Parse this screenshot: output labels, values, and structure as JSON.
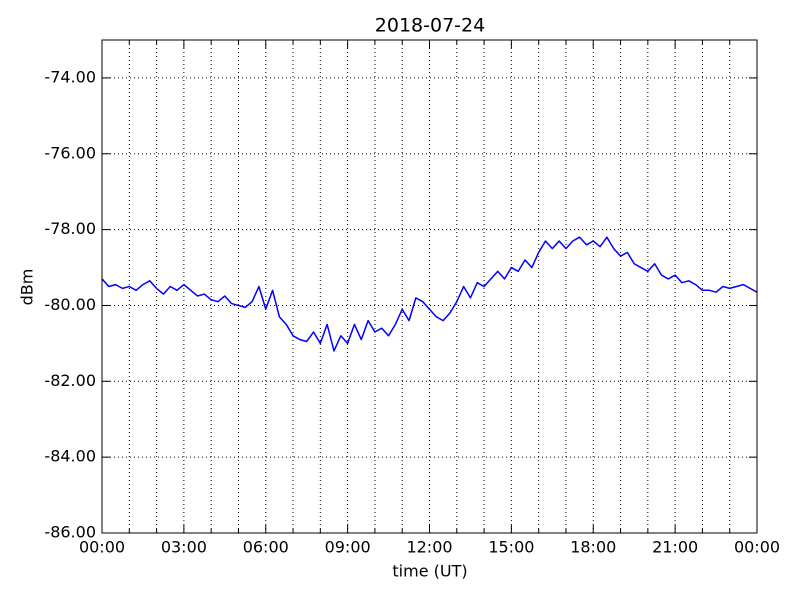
{
  "chart_data": {
    "type": "line",
    "title": "2018-07-24",
    "x_label": "time (UT)",
    "y_label": "dBm",
    "x": [
      0,
      0.25,
      0.5,
      0.75,
      1,
      1.25,
      1.5,
      1.75,
      2,
      2.25,
      2.5,
      2.75,
      3,
      3.25,
      3.5,
      3.75,
      4,
      4.25,
      4.5,
      4.75,
      5,
      5.25,
      5.5,
      5.75,
      6,
      6.25,
      6.5,
      6.75,
      7,
      7.25,
      7.5,
      7.75,
      8,
      8.25,
      8.5,
      8.75,
      9,
      9.25,
      9.5,
      9.75,
      10,
      10.25,
      10.5,
      10.75,
      11,
      11.25,
      11.5,
      11.75,
      12,
      12.25,
      12.5,
      12.75,
      13,
      13.25,
      13.5,
      13.75,
      14,
      14.25,
      14.5,
      14.75,
      15,
      15.25,
      15.5,
      15.75,
      16,
      16.25,
      16.5,
      16.75,
      17,
      17.25,
      17.5,
      17.75,
      18,
      18.25,
      18.5,
      18.75,
      19,
      19.25,
      19.5,
      19.75,
      20,
      20.25,
      20.5,
      20.75,
      21,
      21.25,
      21.5,
      21.75,
      22,
      22.25,
      22.5,
      22.75,
      23,
      23.25,
      23.5,
      23.75,
      24
    ],
    "series": [
      {
        "color": "#0000ff",
        "values": [
          -79.3,
          -79.5,
          -79.45,
          -79.55,
          -79.5,
          -79.6,
          -79.45,
          -79.35,
          -79.55,
          -79.7,
          -79.5,
          -79.6,
          -79.45,
          -79.6,
          -79.75,
          -79.7,
          -79.85,
          -79.9,
          -79.75,
          -79.95,
          -80.0,
          -80.05,
          -79.9,
          -79.5,
          -80.1,
          -79.6,
          -80.3,
          -80.5,
          -80.8,
          -80.9,
          -80.95,
          -80.7,
          -81.0,
          -80.5,
          -81.2,
          -80.8,
          -81.0,
          -80.5,
          -80.9,
          -80.4,
          -80.7,
          -80.6,
          -80.8,
          -80.5,
          -80.1,
          -80.4,
          -79.8,
          -79.9,
          -80.1,
          -80.3,
          -80.4,
          -80.2,
          -79.9,
          -79.5,
          -79.8,
          -79.4,
          -79.5,
          -79.3,
          -79.1,
          -79.3,
          -79.0,
          -79.1,
          -78.8,
          -79.0,
          -78.6,
          -78.3,
          -78.5,
          -78.3,
          -78.5,
          -78.3,
          -78.2,
          -78.4,
          -78.3,
          -78.45,
          -78.2,
          -78.5,
          -78.7,
          -78.6,
          -78.9,
          -79.0,
          -79.1,
          -78.9,
          -79.2,
          -79.3,
          -79.2,
          -79.4,
          -79.35,
          -79.45,
          -79.6,
          -79.6,
          -79.65,
          -79.5,
          -79.55,
          -79.5,
          -79.45,
          -79.55,
          -79.65
        ]
      }
    ],
    "xlim": [
      0,
      24
    ],
    "xticks": [
      {
        "value": 0,
        "label": "00:00"
      },
      {
        "value": 3,
        "label": "03:00"
      },
      {
        "value": 6,
        "label": "06:00"
      },
      {
        "value": 9,
        "label": "09:00"
      },
      {
        "value": 12,
        "label": "12:00"
      },
      {
        "value": 15,
        "label": "15:00"
      },
      {
        "value": 18,
        "label": "18:00"
      },
      {
        "value": 21,
        "label": "21:00"
      },
      {
        "value": 24,
        "label": "00:00"
      }
    ],
    "xminor_ticks": [
      1,
      2,
      4,
      5,
      7,
      8,
      10,
      11,
      13,
      14,
      16,
      17,
      19,
      20,
      22,
      23
    ],
    "ylim": [
      -86,
      -73
    ],
    "yticks": [
      {
        "value": -86,
        "label": "-86.00"
      },
      {
        "value": -84,
        "label": "-84.00"
      },
      {
        "value": -82,
        "label": "-82.00"
      },
      {
        "value": -80,
        "label": "-80.00"
      },
      {
        "value": -78,
        "label": "-78.00"
      },
      {
        "value": -76,
        "label": "-76.00"
      },
      {
        "value": -74,
        "label": "-74.00"
      }
    ],
    "grid": true
  }
}
